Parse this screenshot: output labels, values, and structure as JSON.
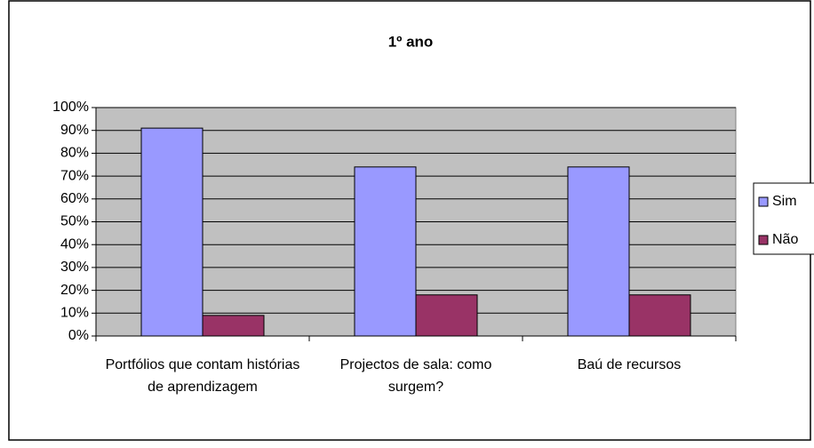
{
  "chart_data": {
    "type": "bar",
    "title": "1º ano",
    "categories": [
      "Portfólios que contam histórias de aprendizagem",
      "Projectos de sala: como surgem?",
      "Baú de recursos"
    ],
    "series": [
      {
        "name": "Sim",
        "color": "#9999ff",
        "values": [
          91,
          74,
          74
        ]
      },
      {
        "name": "Não",
        "color": "#993366",
        "values": [
          9,
          18,
          18
        ]
      }
    ],
    "ylim": [
      0,
      100
    ],
    "yticks": [
      {
        "value": 0,
        "label": "0%"
      },
      {
        "value": 10,
        "label": "10%"
      },
      {
        "value": 20,
        "label": "20%"
      },
      {
        "value": 30,
        "label": "30%"
      },
      {
        "value": 40,
        "label": "40%"
      },
      {
        "value": 50,
        "label": "50%"
      },
      {
        "value": 60,
        "label": "60%"
      },
      {
        "value": 70,
        "label": "70%"
      },
      {
        "value": 80,
        "label": "80%"
      },
      {
        "value": 90,
        "label": "90%"
      },
      {
        "value": 100,
        "label": "100%"
      }
    ],
    "grid": true,
    "legend": "right"
  }
}
